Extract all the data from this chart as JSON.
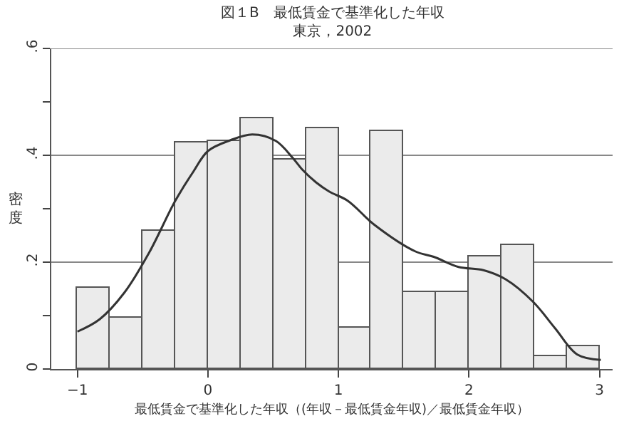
{
  "chart_data": {
    "type": "histogram",
    "title": "図１B　最低賃金で基準化した年収",
    "subtitle": "東京，2002",
    "xlabel": "最低賃金で基準化した年収（(年収－最低賃金年収)／最低賃金年収）",
    "ylabel": "密度",
    "bins": [
      -1,
      -0.75,
      -0.5,
      -0.25,
      0,
      0.25,
      0.5,
      0.75,
      1,
      1.25,
      1.5,
      1.75,
      2,
      2.25,
      2.5,
      2.75,
      3
    ],
    "values": [
      0.153,
      0.095,
      0.26,
      0.423,
      0.428,
      0.469,
      0.393,
      0.45,
      0.077,
      0.445,
      0.145,
      0.145,
      0.212,
      0.231,
      0.025,
      0.044
    ],
    "color": "#ebebeb",
    "series": [
      {
        "type": "line",
        "color": "#333333",
        "x": [
          -1.0,
          -0.83,
          -0.64,
          -0.45,
          -0.25,
          -0.11,
          0.0,
          0.17,
          0.34,
          0.52,
          0.65,
          0.72,
          0.83,
          0.93,
          1.07,
          1.28,
          1.59,
          1.73,
          1.92,
          2.11,
          2.28,
          2.49,
          2.66,
          2.83,
          3.01
        ],
        "values": [
          0.07,
          0.093,
          0.143,
          0.218,
          0.315,
          0.37,
          0.408,
          0.428,
          0.439,
          0.427,
          0.395,
          0.374,
          0.349,
          0.332,
          0.315,
          0.269,
          0.22,
          0.21,
          0.191,
          0.185,
          0.168,
          0.126,
          0.076,
          0.027,
          0.017
        ]
      }
    ],
    "xlim": [
      -1.2,
      3.1
    ],
    "xticks": [
      {
        "value": -1,
        "label": "−1"
      },
      0,
      1,
      2,
      3
    ],
    "ylim": [
      0,
      0.6
    ],
    "yticks": [
      0,
      {
        "value": 0.1,
        "label": null
      },
      {
        "value": 0.2,
        "label": ".2"
      },
      {
        "value": 0.3,
        "label": null
      },
      {
        "value": 0.4,
        "label": ".4"
      },
      {
        "value": 0.5,
        "label": null
      },
      {
        "value": 0.6,
        "label": ".6"
      }
    ],
    "grid": "y",
    "marker": "none",
    "line_style": "solid"
  }
}
